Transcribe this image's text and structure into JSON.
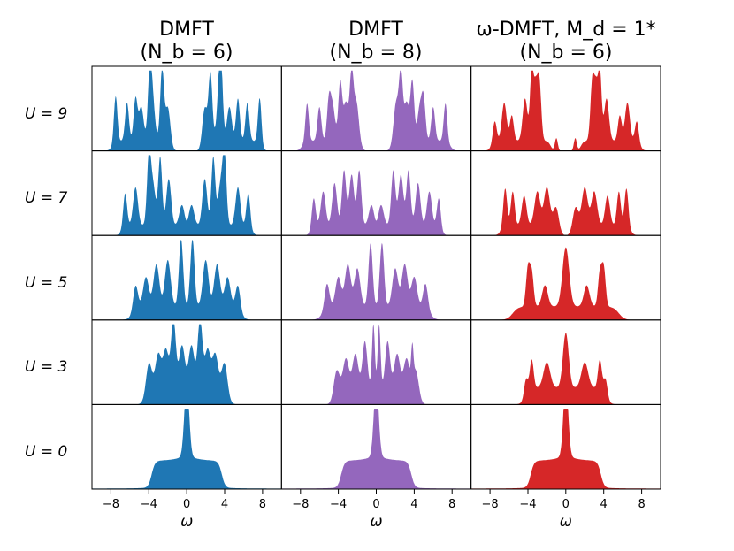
{
  "chart_data": {
    "type": "area",
    "columns": [
      {
        "title_line1": "DMFT",
        "title_line2": "(N_b = 6)",
        "color": "#1f77b4"
      },
      {
        "title_line1": "DMFT",
        "title_line2": "(N_b = 8)",
        "color": "#9467bd"
      },
      {
        "title_line1": "ω-DMFT, M_d = 1*",
        "title_line2": "(N_b = 6)",
        "color": "#d62728"
      }
    ],
    "rows": [
      {
        "label": "U = 9",
        "U": 9
      },
      {
        "label": "U = 7",
        "U": 7
      },
      {
        "label": "U = 5",
        "U": 5
      },
      {
        "label": "U = 3",
        "U": 3
      },
      {
        "label": "U = 0",
        "U": 0
      }
    ],
    "xlabel": "ω",
    "xlim": [
      -10,
      10
    ],
    "xticks": [
      -8,
      -4,
      0,
      4,
      8
    ],
    "xtick_labels": [
      "−8",
      "−4",
      "0",
      "4",
      "8"
    ],
    "ylabel": "",
    "grid": false,
    "spectra": [
      [
        {
          "x": [
            -7.5,
            -6.3,
            -5.4,
            -4.8,
            -3.9,
            -3.6,
            -2.6,
            -2.0,
            1.9,
            2.5,
            3.4,
            3.6,
            4.5,
            5.4,
            6.4,
            7.7
          ],
          "h": [
            0.55,
            0.45,
            0.5,
            0.4,
            0.75,
            0.45,
            0.85,
            0.4,
            0.4,
            0.8,
            0.45,
            0.75,
            0.4,
            0.5,
            0.45,
            0.55
          ],
          "w": [
            0.18,
            0.2,
            0.2,
            0.25,
            0.2,
            0.25,
            0.2,
            0.25,
            0.25,
            0.2,
            0.25,
            0.2,
            0.25,
            0.2,
            0.2,
            0.18
          ]
        },
        {
          "x": [
            -6.5,
            -5.4,
            -4.0,
            -3.6,
            -2.8,
            -1.9,
            -0.5,
            0.5,
            1.9,
            2.8,
            3.6,
            4.0,
            5.4,
            6.5
          ],
          "h": [
            0.4,
            0.45,
            0.7,
            0.5,
            0.8,
            0.55,
            0.35,
            0.35,
            0.55,
            0.8,
            0.5,
            0.7,
            0.45,
            0.4
          ],
          "w": [
            0.2,
            0.25,
            0.2,
            0.3,
            0.2,
            0.25,
            0.3,
            0.3,
            0.25,
            0.2,
            0.3,
            0.2,
            0.25,
            0.2
          ]
        },
        {
          "x": [
            -5.4,
            -4.3,
            -3.2,
            -2.0,
            -0.6,
            0.6,
            2.0,
            3.2,
            4.3,
            5.4
          ],
          "h": [
            0.3,
            0.35,
            0.5,
            0.55,
            0.8,
            0.8,
            0.55,
            0.5,
            0.35,
            0.3
          ],
          "w": [
            0.25,
            0.3,
            0.3,
            0.3,
            0.22,
            0.22,
            0.3,
            0.3,
            0.3,
            0.25
          ]
        },
        {
          "x": [
            -4.0,
            -3.0,
            -2.2,
            -1.4,
            -0.5,
            0.5,
            1.4,
            2.2,
            3.0,
            4.0
          ],
          "h": [
            0.35,
            0.4,
            0.45,
            0.8,
            0.5,
            0.5,
            0.8,
            0.45,
            0.4,
            0.35
          ],
          "w": [
            0.3,
            0.3,
            0.3,
            0.25,
            0.3,
            0.3,
            0.25,
            0.3,
            0.3,
            0.3
          ]
        },
        {
          "x": [
            0.0
          ],
          "h": [
            0.85
          ],
          "w": [
            0.25
          ]
        }
      ],
      [
        {
          "x": [
            -7.3,
            -6.0,
            -5.0,
            -4.6,
            -3.8,
            -3.2,
            -2.6,
            -2.1,
            2.1,
            2.6,
            3.2,
            3.8,
            4.6,
            5.0,
            6.0,
            7.3
          ],
          "h": [
            0.45,
            0.4,
            0.45,
            0.4,
            0.7,
            0.45,
            0.8,
            0.45,
            0.45,
            0.8,
            0.45,
            0.7,
            0.4,
            0.45,
            0.4,
            0.45
          ],
          "w": [
            0.18,
            0.2,
            0.2,
            0.25,
            0.2,
            0.25,
            0.2,
            0.25,
            0.25,
            0.2,
            0.25,
            0.2,
            0.25,
            0.2,
            0.2,
            0.18
          ]
        },
        {
          "x": [
            -6.6,
            -5.6,
            -4.4,
            -3.4,
            -2.6,
            -1.8,
            -0.5,
            0.5,
            1.8,
            2.6,
            3.4,
            4.4,
            5.6,
            6.6
          ],
          "h": [
            0.35,
            0.4,
            0.5,
            0.65,
            0.6,
            0.65,
            0.35,
            0.35,
            0.65,
            0.6,
            0.65,
            0.5,
            0.4,
            0.35
          ],
          "w": [
            0.2,
            0.25,
            0.25,
            0.22,
            0.25,
            0.22,
            0.3,
            0.3,
            0.22,
            0.25,
            0.22,
            0.25,
            0.25,
            0.2
          ]
        },
        {
          "x": [
            -5.2,
            -4.0,
            -3.0,
            -2.0,
            -0.6,
            0.6,
            2.0,
            3.0,
            4.0,
            5.2
          ],
          "h": [
            0.3,
            0.35,
            0.5,
            0.45,
            0.75,
            0.75,
            0.45,
            0.5,
            0.35,
            0.3
          ],
          "w": [
            0.25,
            0.3,
            0.3,
            0.3,
            0.22,
            0.22,
            0.3,
            0.3,
            0.3,
            0.25
          ]
        },
        {
          "x": [
            -4.2,
            -3.2,
            -2.2,
            -1.2,
            -0.3,
            0.3,
            1.2,
            2.2,
            3.2,
            3.8,
            4.2
          ],
          "h": [
            0.3,
            0.35,
            0.4,
            0.55,
            0.75,
            0.75,
            0.55,
            0.4,
            0.35,
            0.4,
            0.3
          ],
          "w": [
            0.3,
            0.3,
            0.3,
            0.25,
            0.15,
            0.15,
            0.25,
            0.3,
            0.3,
            0.12,
            0.3
          ]
        },
        {
          "x": [
            0.0
          ],
          "h": [
            0.85
          ],
          "w": [
            0.25
          ]
        }
      ],
      [
        {
          "x": [
            -7.5,
            -6.5,
            -5.7,
            -4.3,
            -3.6,
            -3.2,
            -2.8,
            -1.0,
            1.0,
            2.8,
            3.2,
            3.6,
            4.3,
            5.7,
            6.5,
            7.5
          ],
          "h": [
            0.25,
            0.45,
            0.3,
            0.5,
            0.8,
            0.6,
            0.7,
            0.15,
            0.15,
            0.7,
            0.6,
            0.8,
            0.5,
            0.3,
            0.45,
            0.25
          ],
          "w": [
            0.2,
            0.25,
            0.2,
            0.25,
            0.18,
            0.2,
            0.2,
            0.15,
            0.15,
            0.2,
            0.2,
            0.18,
            0.25,
            0.2,
            0.25,
            0.2
          ]
        },
        {
          "x": [
            -6.4,
            -5.6,
            -4.4,
            -3.0,
            -2.0,
            -1.0,
            1.0,
            2.0,
            3.0,
            4.4,
            5.6,
            6.4
          ],
          "h": [
            0.45,
            0.4,
            0.35,
            0.4,
            0.45,
            0.25,
            0.25,
            0.45,
            0.4,
            0.35,
            0.4,
            0.45
          ],
          "w": [
            0.2,
            0.2,
            0.25,
            0.3,
            0.3,
            0.3,
            0.3,
            0.3,
            0.3,
            0.25,
            0.2,
            0.2
          ]
        },
        {
          "x": [
            -4.0,
            -3.6,
            -2.2,
            0.0,
            2.2,
            3.6,
            4.0
          ],
          "h": [
            0.45,
            0.4,
            0.25,
            0.7,
            0.25,
            0.4,
            0.45
          ],
          "w": [
            0.2,
            0.2,
            0.3,
            0.35,
            0.3,
            0.2,
            0.2
          ]
        },
        {
          "x": [
            -4.2,
            -3.6,
            -2.0,
            0.0,
            2.0,
            3.6,
            4.2
          ],
          "h": [
            0.2,
            0.35,
            0.3,
            0.65,
            0.3,
            0.35,
            0.2
          ],
          "w": [
            0.2,
            0.2,
            0.35,
            0.3,
            0.35,
            0.2,
            0.2
          ]
        },
        {
          "x": [
            0.0
          ],
          "h": [
            0.85
          ],
          "w": [
            0.25
          ]
        }
      ]
    ]
  }
}
